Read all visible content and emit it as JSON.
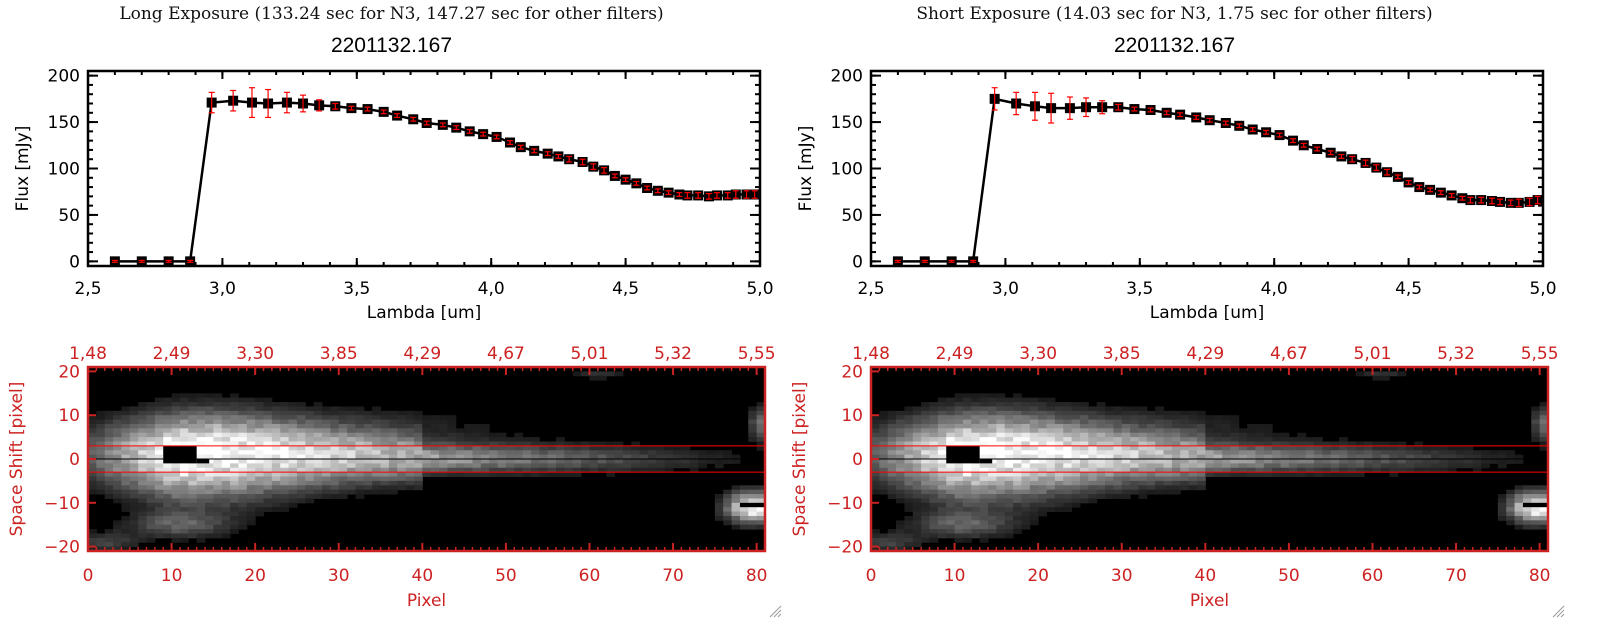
{
  "panels": [
    {
      "heading": "Long Exposure (133.24 sec for N3, 147.27 sec for other filters)",
      "object_id": "2201132.167"
    },
    {
      "heading": "Short Exposure (14.03 sec for N3, 1.75 sec for other filters)",
      "object_id": "2201132.167"
    }
  ],
  "colors": {
    "axis": "#000000",
    "errorbar": "#ff0000",
    "image_axis": "#cc2222",
    "aperture_line": "#ff0000",
    "center_line": "#000000"
  },
  "chart_data": [
    {
      "type": "line",
      "title": "2201132.167",
      "xlabel": "Lambda [um]",
      "ylabel": "Flux [mJy]",
      "xlim": [
        2.5,
        5.0
      ],
      "ylim": [
        -5,
        205
      ],
      "xticks": [
        "2.5",
        "3.0",
        "3.5",
        "4.0",
        "4.5",
        "5.0"
      ],
      "yticks": [
        "0",
        "50",
        "100",
        "150",
        "200"
      ],
      "series": [
        {
          "name": "Long Exposure",
          "x": [
            2.6,
            2.7,
            2.8,
            2.88,
            2.96,
            3.04,
            3.11,
            3.17,
            3.24,
            3.3,
            3.36,
            3.42,
            3.48,
            3.54,
            3.6,
            3.65,
            3.71,
            3.76,
            3.82,
            3.87,
            3.92,
            3.97,
            4.02,
            4.07,
            4.11,
            4.16,
            4.21,
            4.25,
            4.29,
            4.34,
            4.38,
            4.42,
            4.46,
            4.5,
            4.54,
            4.58,
            4.62,
            4.66,
            4.7,
            4.73,
            4.77,
            4.81,
            4.84,
            4.88,
            4.91,
            4.95,
            4.98
          ],
          "y": [
            0,
            0,
            0,
            0,
            171,
            173,
            171,
            170,
            171,
            170,
            168,
            167,
            165,
            164,
            161,
            157,
            153,
            149,
            147,
            144,
            140,
            137,
            134,
            128,
            123,
            119,
            116,
            113,
            110,
            107,
            102,
            98,
            92,
            88,
            84,
            79,
            76,
            74,
            72,
            71,
            71,
            70,
            71,
            71,
            72,
            72,
            72
          ],
          "yerr": [
            1,
            1,
            1,
            1,
            11,
            11,
            16,
            15,
            11,
            9,
            6,
            3,
            2,
            2,
            2,
            2,
            2,
            2,
            2,
            2,
            2,
            2,
            2,
            2,
            2,
            2,
            2,
            2,
            3,
            3,
            3,
            3,
            2,
            2,
            2,
            2,
            2,
            2,
            2,
            3,
            3,
            3,
            3,
            3,
            4,
            4,
            4
          ]
        }
      ]
    },
    {
      "type": "line",
      "title": "2201132.167",
      "xlabel": "Lambda [um]",
      "ylabel": "Flux [mJy]",
      "xlim": [
        2.5,
        5.0
      ],
      "ylim": [
        -5,
        205
      ],
      "xticks": [
        "2.5",
        "3.0",
        "3.5",
        "4.0",
        "4.5",
        "5.0"
      ],
      "yticks": [
        "0",
        "50",
        "100",
        "150",
        "200"
      ],
      "series": [
        {
          "name": "Short Exposure",
          "x": [
            2.6,
            2.7,
            2.8,
            2.88,
            2.96,
            3.04,
            3.11,
            3.17,
            3.24,
            3.3,
            3.36,
            3.42,
            3.48,
            3.54,
            3.6,
            3.65,
            3.71,
            3.76,
            3.82,
            3.87,
            3.92,
            3.97,
            4.02,
            4.07,
            4.11,
            4.16,
            4.21,
            4.25,
            4.29,
            4.34,
            4.38,
            4.42,
            4.46,
            4.5,
            4.54,
            4.58,
            4.62,
            4.66,
            4.7,
            4.73,
            4.77,
            4.81,
            4.84,
            4.88,
            4.91,
            4.95,
            4.98
          ],
          "y": [
            0,
            0,
            0,
            0,
            175,
            170,
            167,
            165,
            165,
            166,
            166,
            166,
            164,
            163,
            160,
            158,
            155,
            152,
            149,
            146,
            142,
            139,
            136,
            130,
            125,
            121,
            117,
            113,
            110,
            106,
            101,
            96,
            91,
            85,
            80,
            77,
            74,
            71,
            68,
            66,
            66,
            65,
            64,
            63,
            63,
            64,
            66
          ],
          "yerr": [
            1,
            1,
            1,
            1,
            12,
            12,
            15,
            16,
            12,
            10,
            7,
            3,
            2,
            2,
            2,
            2,
            2,
            2,
            2,
            2,
            2,
            2,
            2,
            2,
            2,
            2,
            2,
            2,
            3,
            3,
            3,
            3,
            2,
            2,
            2,
            2,
            2,
            2,
            2,
            3,
            3,
            3,
            3,
            3,
            4,
            4,
            4
          ]
        }
      ]
    },
    {
      "type": "heatmap",
      "xlabel": "Pixel",
      "ylabel": "Space Shift [pixel]",
      "xlim": [
        0,
        81
      ],
      "ylim": [
        -21,
        21
      ],
      "xticks": [
        "0",
        "10",
        "20",
        "30",
        "40",
        "50",
        "60",
        "70",
        "80"
      ],
      "yticks": [
        "-20",
        "-10",
        "0",
        "10",
        "20"
      ],
      "top_xticks": [
        "1.48",
        "2.49",
        "3.30",
        "3.85",
        "4.29",
        "4.67",
        "5.01",
        "5.32",
        "5.55"
      ],
      "aperture_rows": [
        -3,
        3
      ],
      "center_row": 0,
      "description": "Spectral image: bright trace along row 0 peaking near pixel 10, fading toward pixel 75; secondary bright source near pixel 79, row -11"
    },
    {
      "type": "heatmap",
      "xlabel": "Pixel",
      "ylabel": "Space Shift [pixel]",
      "xlim": [
        0,
        81
      ],
      "ylim": [
        -21,
        21
      ],
      "xticks": [
        "0",
        "10",
        "20",
        "30",
        "40",
        "50",
        "60",
        "70",
        "80"
      ],
      "yticks": [
        "-20",
        "-10",
        "0",
        "10",
        "20"
      ],
      "top_xticks": [
        "1.48",
        "2.49",
        "3.30",
        "3.85",
        "4.29",
        "4.67",
        "5.01",
        "5.32",
        "5.55"
      ],
      "aperture_rows": [
        -3,
        3
      ],
      "center_row": 0,
      "description": "Spectral image: bright trace along row 0 peaking near pixel 10, fading toward pixel 75; secondary bright source near pixel 79, row -11"
    }
  ]
}
